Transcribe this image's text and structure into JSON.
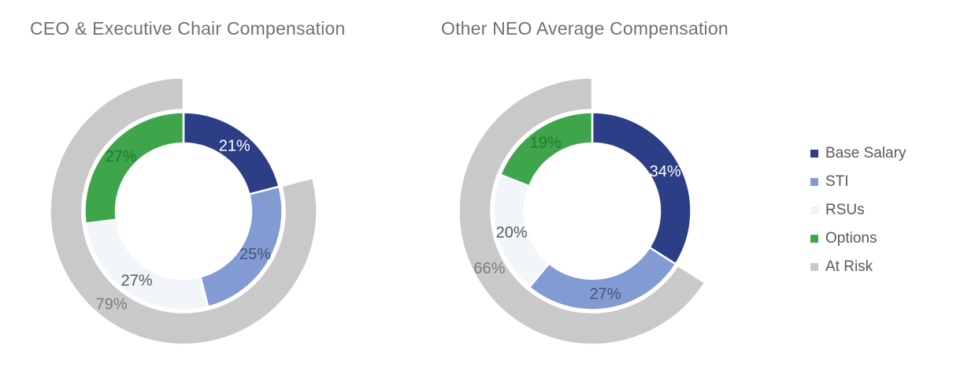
{
  "colors": {
    "background": "#ffffff",
    "title_text": "#717171",
    "legend_text": "#595959",
    "separator": "#ffffff"
  },
  "chart_data": [
    {
      "type": "donut",
      "title": "CEO & Executive Chair Compensation",
      "unit": "%",
      "series": [
        {
          "name": "Base Salary",
          "value": 21,
          "label": "21%",
          "color": "#2b3e86",
          "label_color": "#ffffff"
        },
        {
          "name": "STI",
          "value": 25,
          "label": "25%",
          "color": "#829bd3",
          "label_color": "#47527c"
        },
        {
          "name": "RSUs",
          "value": 27,
          "label": "27%",
          "color": "#f2f6fa",
          "label_color": "#595959"
        },
        {
          "name": "Options",
          "value": 27,
          "label": "27%",
          "color": "#3ea54b",
          "label_color": "#1f7b33"
        }
      ],
      "outer_ring": {
        "name": "At Risk",
        "value": 79,
        "label": "79%",
        "color": "#c9c9c9",
        "label_color": "#7c7c7c"
      }
    },
    {
      "type": "donut",
      "title": "Other NEO Average Compensation",
      "unit": "%",
      "series": [
        {
          "name": "Base Salary",
          "value": 34,
          "label": "34%",
          "color": "#2b3e86",
          "label_color": "#ffffff"
        },
        {
          "name": "STI",
          "value": 27,
          "label": "27%",
          "color": "#829bd3",
          "label_color": "#47527c"
        },
        {
          "name": "RSUs",
          "value": 20,
          "label": "20%",
          "color": "#f2f6fa",
          "label_color": "#595959"
        },
        {
          "name": "Options",
          "value": 19,
          "label": "19%",
          "color": "#3ea54b",
          "label_color": "#1f7b33"
        }
      ],
      "outer_ring": {
        "name": "At Risk",
        "value": 66,
        "label": "66%",
        "color": "#c9c9c9",
        "label_color": "#7c7c7c"
      }
    }
  ],
  "legend": {
    "items": [
      {
        "label": "Base Salary",
        "color": "#2b3e86"
      },
      {
        "label": "STI",
        "color": "#829bd3"
      },
      {
        "label": "RSUs",
        "color": "#eef3f9"
      },
      {
        "label": "Options",
        "color": "#3ea54b"
      },
      {
        "label": "At Risk",
        "color": "#c9c9c9"
      }
    ]
  }
}
